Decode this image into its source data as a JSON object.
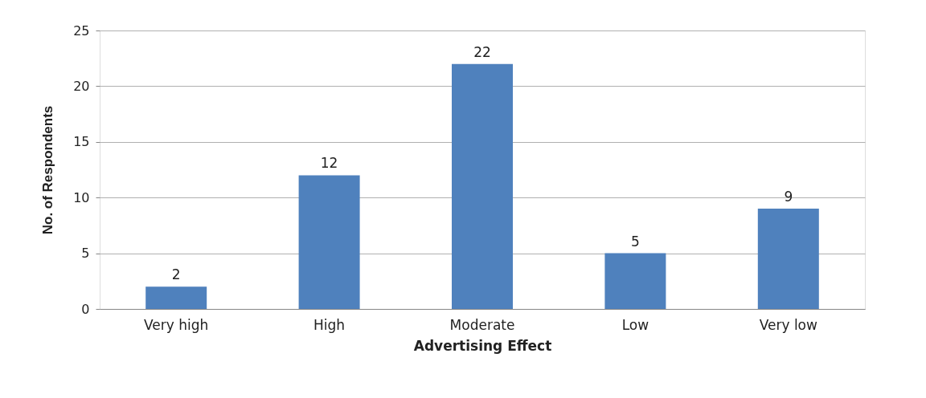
{
  "chart_data": {
    "type": "bar",
    "xlabel": "Advertising Effect",
    "ylabel": "No. of Respondents",
    "categories": [
      "Very high",
      "High",
      "Moderate",
      "Low",
      "Very low"
    ],
    "values": [
      2,
      12,
      22,
      5,
      9
    ],
    "color": "#4f81bd",
    "ylim": [
      0,
      25
    ],
    "yticks": [
      0,
      5,
      10,
      15,
      20,
      25
    ],
    "grid": "y",
    "data_labels": true
  }
}
